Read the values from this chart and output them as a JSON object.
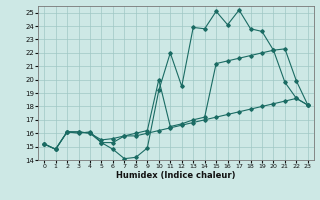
{
  "xlabel": "Humidex (Indice chaleur)",
  "xlim": [
    -0.5,
    23.5
  ],
  "ylim": [
    14,
    25.5
  ],
  "yticks": [
    14,
    15,
    16,
    17,
    18,
    19,
    20,
    21,
    22,
    23,
    24,
    25
  ],
  "xticks": [
    0,
    1,
    2,
    3,
    4,
    5,
    6,
    7,
    8,
    9,
    10,
    11,
    12,
    13,
    14,
    15,
    16,
    17,
    18,
    19,
    20,
    21,
    22,
    23
  ],
  "bg_color": "#cde8e5",
  "grid_color": "#a0c8c4",
  "line_color": "#1a6b63",
  "line1_x": [
    0,
    1,
    2,
    3,
    4,
    5,
    6,
    7,
    8,
    9,
    10,
    11,
    12,
    13,
    14,
    15,
    16,
    17,
    18,
    19,
    20,
    21,
    22,
    23
  ],
  "line1_y": [
    15.2,
    14.8,
    16.1,
    16.1,
    16.0,
    15.3,
    14.8,
    14.1,
    14.2,
    14.9,
    19.2,
    22.0,
    19.5,
    23.9,
    23.8,
    25.1,
    24.1,
    25.2,
    23.8,
    23.6,
    22.2,
    19.8,
    18.6,
    18.1
  ],
  "line2_x": [
    0,
    1,
    2,
    3,
    4,
    5,
    6,
    7,
    8,
    9,
    10,
    11,
    12,
    13,
    14,
    15,
    16,
    17,
    18,
    19,
    20,
    21,
    22,
    23
  ],
  "line2_y": [
    15.2,
    14.8,
    16.1,
    16.0,
    16.1,
    15.3,
    15.3,
    15.8,
    15.8,
    16.0,
    16.2,
    16.4,
    16.6,
    16.8,
    17.0,
    17.2,
    17.4,
    17.6,
    17.8,
    18.0,
    18.2,
    18.4,
    18.6,
    18.1
  ],
  "line3_x": [
    0,
    1,
    2,
    3,
    4,
    5,
    6,
    7,
    8,
    9,
    10,
    11,
    12,
    13,
    14,
    15,
    16,
    17,
    18,
    19,
    20,
    21,
    22,
    23
  ],
  "line3_y": [
    15.2,
    14.8,
    16.1,
    16.1,
    16.0,
    15.5,
    15.6,
    15.8,
    16.0,
    16.2,
    20.0,
    16.5,
    16.7,
    17.0,
    17.2,
    21.2,
    21.4,
    21.6,
    21.8,
    22.0,
    22.2,
    22.3,
    19.9,
    18.1
  ]
}
